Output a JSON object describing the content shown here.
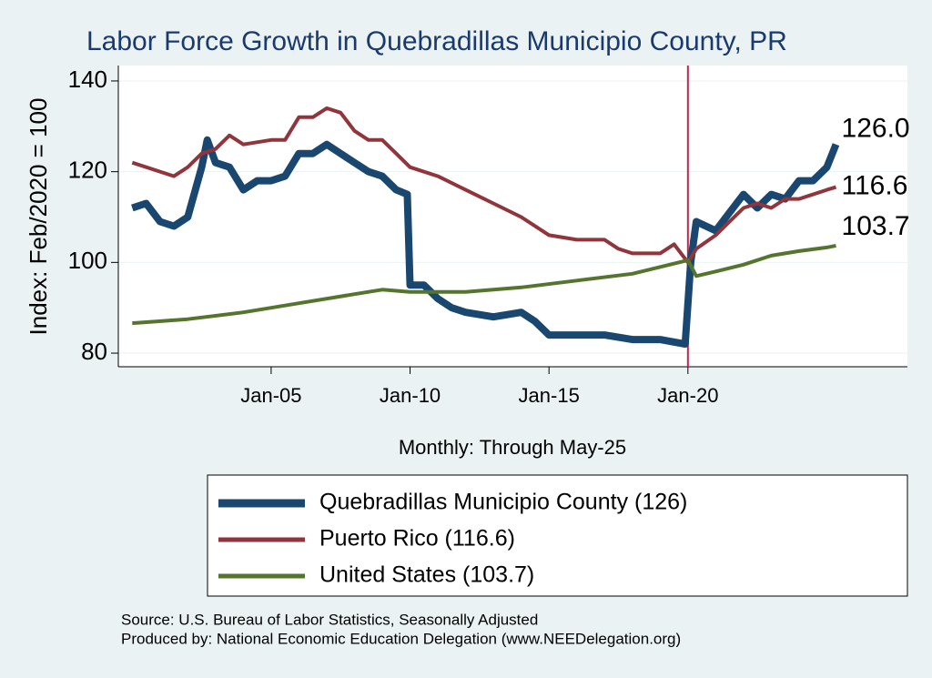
{
  "chart_data": {
    "type": "line",
    "title": "Labor Force Growth in Quebradillas Municipio  County, PR",
    "y_label": "Index: Feb/2020 = 100",
    "x_label": "Monthly: Through May-25",
    "source": [
      "Source: U.S. Bureau of Labor Statistics, Seasonally Adjusted",
      "Produced by: National Economic Education Delegation (www.NEEDelegation.org)"
    ],
    "xlim": [
      1999.5,
      2027.9
    ],
    "ylim": [
      77,
      143.4
    ],
    "xticks": [
      {
        "value": 2005,
        "label": "Jan-05"
      },
      {
        "value": 2010,
        "label": "Jan-10"
      },
      {
        "value": 2015,
        "label": "Jan-15"
      },
      {
        "value": 2020,
        "label": "Jan-20"
      }
    ],
    "yticks": [
      80,
      100,
      120,
      140
    ],
    "vline": 2020,
    "vline_color": "#c0284a",
    "grid": true,
    "series": [
      {
        "name": "Quebradillas Municipio  County (126)",
        "color": "#1a476f",
        "end_label": "126.0",
        "x": [
          2000,
          2000.5,
          2001,
          2001.5,
          2002,
          2002.5,
          2002.7,
          2003,
          2003.5,
          2004,
          2004.5,
          2005,
          2005.5,
          2006,
          2006.5,
          2007,
          2007.5,
          2008,
          2008.5,
          2009,
          2009.5,
          2009.9,
          2010,
          2010.5,
          2011,
          2011.5,
          2012,
          2013,
          2014,
          2014.5,
          2015,
          2016,
          2017,
          2018,
          2019,
          2019.9,
          2020.1,
          2020.3,
          2021,
          2021.5,
          2022,
          2022.5,
          2023,
          2023.5,
          2024,
          2024.5,
          2025,
          2025.33
        ],
        "values": [
          112,
          113,
          109,
          108,
          110,
          121,
          127,
          122,
          121,
          116,
          118,
          118,
          119,
          124,
          124,
          126,
          124,
          122,
          120,
          119,
          116,
          115,
          95,
          95,
          92,
          90,
          89,
          88,
          89,
          87,
          84,
          84,
          84,
          83,
          83,
          82,
          100,
          109,
          107,
          111,
          115,
          112,
          115,
          114,
          118,
          118,
          121,
          126
        ]
      },
      {
        "name": "Puerto Rico (116.6)",
        "color": "#90353b",
        "end_label": "116.6",
        "x": [
          2000,
          2001,
          2001.5,
          2002,
          2002.5,
          2003,
          2003.5,
          2004,
          2005,
          2005.5,
          2006,
          2006.5,
          2007,
          2007.5,
          2008,
          2008.5,
          2009,
          2009.5,
          2010,
          2011,
          2012,
          2013,
          2014,
          2015,
          2016,
          2017,
          2017.5,
          2018,
          2019,
          2019.5,
          2020,
          2020.3,
          2021,
          2022,
          2022.5,
          2023,
          2023.5,
          2024,
          2025,
          2025.33
        ],
        "values": [
          122,
          120,
          119,
          121,
          124,
          125,
          128,
          126,
          127,
          127,
          132,
          132,
          134,
          133,
          129,
          127,
          127,
          124,
          121,
          119,
          116,
          113,
          110,
          106,
          105,
          105,
          103,
          102,
          102,
          104,
          100,
          103,
          106,
          112,
          113,
          112,
          114,
          114,
          116,
          116.6
        ]
      },
      {
        "name": "United States (103.7)",
        "color": "#55752f",
        "end_label": "103.7",
        "x": [
          2000,
          2002,
          2004,
          2006,
          2008,
          2009,
          2010,
          2012,
          2014,
          2016,
          2018,
          2020,
          2020.3,
          2021,
          2022,
          2023,
          2024,
          2025,
          2025.33
        ],
        "values": [
          86.6,
          87.5,
          89,
          91,
          93,
          94,
          93.5,
          93.5,
          94.5,
          96,
          97.5,
          100.5,
          97,
          98,
          99.5,
          101.5,
          102.5,
          103.3,
          103.7
        ]
      }
    ]
  }
}
